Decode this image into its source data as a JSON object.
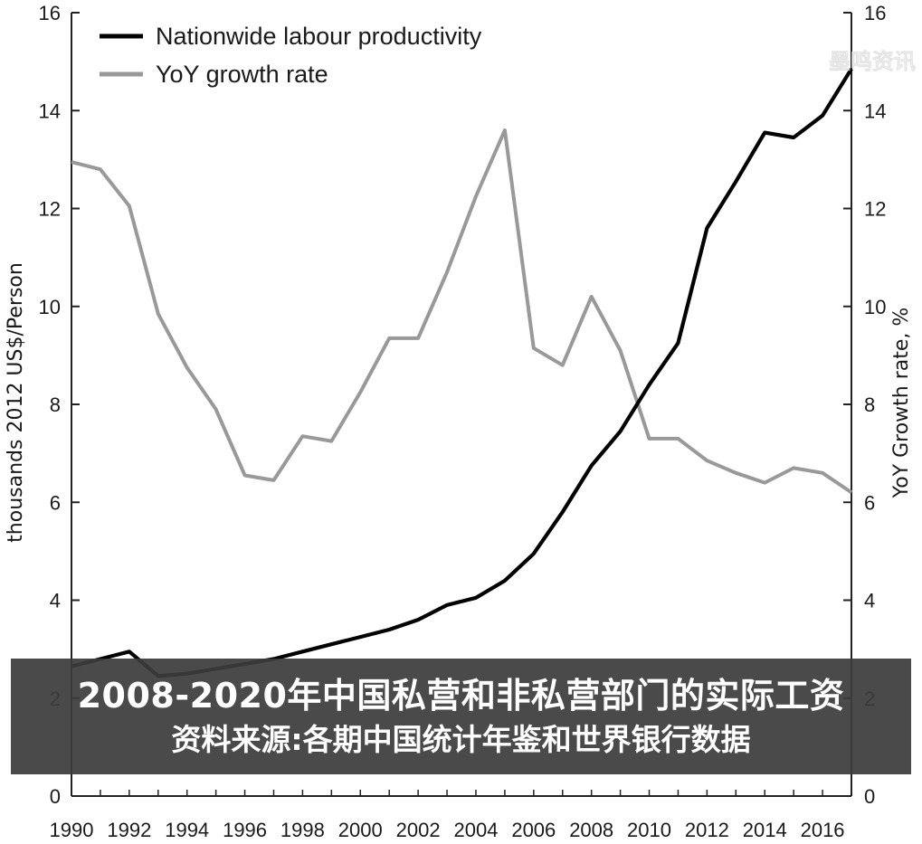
{
  "chart_data": {
    "type": "line",
    "title": "",
    "xlabel": "",
    "ylabel": "thousands 2012 US$/Person",
    "y2label": "YoY Growth rate, %",
    "xlim": [
      1990,
      2017
    ],
    "ylim": [
      0,
      16
    ],
    "y2lim": [
      0,
      16
    ],
    "x_ticks": [
      1990,
      1992,
      1994,
      1996,
      1998,
      2000,
      2002,
      2004,
      2006,
      2008,
      2010,
      2012,
      2014,
      2016
    ],
    "y_ticks": [
      0,
      2,
      4,
      6,
      8,
      10,
      12,
      14,
      16
    ],
    "y2_ticks": [
      0,
      2,
      4,
      6,
      8,
      10,
      12,
      14,
      16
    ],
    "grid": false,
    "legend": "top-left",
    "x": [
      1990,
      1991,
      1992,
      1993,
      1994,
      1995,
      1996,
      1997,
      1998,
      1999,
      2000,
      2001,
      2002,
      2003,
      2004,
      2005,
      2006,
      2007,
      2008,
      2009,
      2010,
      2011,
      2012,
      2013,
      2014,
      2015,
      2016,
      2017
    ],
    "series": [
      {
        "name": "Nationwide labour productivity",
        "axis": "left",
        "color": "#000000",
        "values": [
          2.65,
          2.8,
          2.95,
          2.45,
          2.5,
          2.6,
          2.7,
          2.8,
          2.95,
          3.1,
          3.25,
          3.4,
          3.6,
          3.9,
          4.05,
          4.4,
          4.95,
          5.8,
          6.75,
          7.45,
          8.4,
          9.25,
          11.6,
          12.55,
          13.55,
          13.45,
          13.9,
          14.85
        ]
      },
      {
        "name": "YoY growth rate",
        "axis": "right",
        "color": "#999999",
        "values": [
          12.95,
          12.8,
          12.05,
          9.85,
          8.75,
          7.9,
          6.55,
          6.45,
          7.35,
          7.25,
          8.25,
          9.35,
          9.35,
          10.7,
          12.25,
          13.6,
          9.15,
          8.8,
          10.2,
          9.1,
          7.3,
          7.3,
          6.85,
          6.6,
          6.4,
          6.7,
          6.6,
          6.2
        ]
      }
    ]
  },
  "caption": {
    "line1": "2008-2020年中国私营和非私营部门的实际工资",
    "line2": "资料来源:各期中国统计年鉴和世界银行数据"
  },
  "watermark": "墨鸣资讯"
}
